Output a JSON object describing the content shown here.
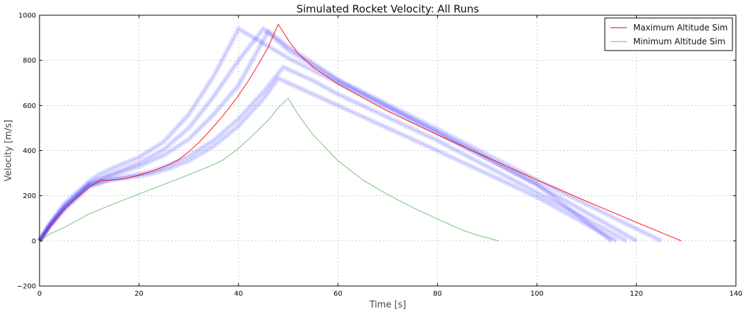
{
  "chart_data": {
    "type": "line",
    "title": "Simulated Rocket Velocity: All Runs",
    "xlabel": "Time [s]",
    "ylabel": "Velocity [m/s]",
    "xlim": [
      0,
      140
    ],
    "ylim": [
      -200,
      1000
    ],
    "xticks": [
      0,
      20,
      40,
      60,
      80,
      100,
      120,
      140
    ],
    "yticks": [
      -200,
      0,
      200,
      400,
      600,
      800,
      1000
    ],
    "grid": true,
    "legend_position": "top-right",
    "series": [
      {
        "name": "Maximum Altitude Sim",
        "color": "#ff0000",
        "x": [
          0,
          2,
          4,
          6,
          8,
          10,
          12.2,
          14,
          17,
          20,
          23,
          26,
          28,
          30,
          32,
          34,
          36,
          38,
          40,
          42,
          44,
          46,
          48,
          50,
          52,
          55,
          60,
          70,
          80,
          90,
          100,
          110,
          120,
          129
        ],
        "y": [
          0,
          60,
          115,
          163,
          203,
          238,
          270,
          268,
          275,
          291,
          312,
          338,
          360,
          395,
          435,
          482,
          532,
          585,
          645,
          710,
          782,
          860,
          960,
          890,
          830,
          770,
          695,
          575,
          470,
          370,
          270,
          175,
          82,
          0
        ]
      },
      {
        "name": "Minimum Altitude Sim",
        "color": "#2ca02c",
        "x": [
          0,
          2,
          5,
          10,
          15,
          20,
          25,
          30,
          35,
          37,
          40,
          43,
          46,
          48,
          50,
          52,
          55,
          60,
          65,
          70,
          75,
          80,
          85,
          88,
          92.3
        ],
        "y": [
          0,
          30,
          60,
          120,
          165,
          208,
          250,
          293,
          338,
          360,
          410,
          470,
          535,
          590,
          632,
          560,
          470,
          355,
          270,
          205,
          148,
          97,
          48,
          25,
          0
        ]
      },
      {
        "name": "",
        "color": "#0000ff",
        "style": "faint",
        "runs": [
          {
            "x": [
              0,
              2,
              5,
              10,
              12,
              15,
              20,
              25,
              30,
              35,
              40,
              50,
              60,
              80,
              100,
              115
            ],
            "y": [
              0,
              75,
              165,
              265,
              295,
              325,
              370,
              440,
              560,
              730,
              940,
              810,
              700,
              480,
              250,
              0
            ]
          },
          {
            "x": [
              0,
              2,
              5,
              10,
              13,
              16,
              20,
              25,
              30,
              35,
              40,
              45,
              50,
              60,
              80,
              100,
              120
            ],
            "y": [
              0,
              70,
              155,
              255,
              285,
              310,
              345,
              405,
              500,
              640,
              800,
              940,
              845,
              710,
              480,
              250,
              0
            ]
          },
          {
            "x": [
              0,
              2,
              5,
              10,
              13,
              16,
              20,
              25,
              30,
              35,
              40,
              46,
              50,
              60,
              80,
              100,
              125
            ],
            "y": [
              0,
              68,
              150,
              250,
              278,
              300,
              330,
              380,
              450,
              560,
              690,
              930,
              860,
              715,
              495,
              270,
              0
            ]
          },
          {
            "x": [
              0,
              2,
              5,
              10,
              14,
              18,
              22,
              26,
              30,
              35,
              40,
              45,
              49,
              55,
              60,
              80,
              100,
              118
            ],
            "y": [
              0,
              65,
              145,
              245,
              272,
              288,
              305,
              335,
              375,
              445,
              540,
              660,
              770,
              710,
              650,
              445,
              215,
              0
            ]
          },
          {
            "x": [
              0,
              2,
              5,
              10,
              14,
              18,
              22,
              26,
              30,
              35,
              40,
              45,
              48,
              52,
              60,
              80,
              100,
              116
            ],
            "y": [
              0,
              62,
              140,
              240,
              268,
              280,
              295,
              320,
              355,
              420,
              510,
              630,
              720,
              680,
              600,
              400,
              195,
              0
            ]
          }
        ]
      }
    ]
  }
}
